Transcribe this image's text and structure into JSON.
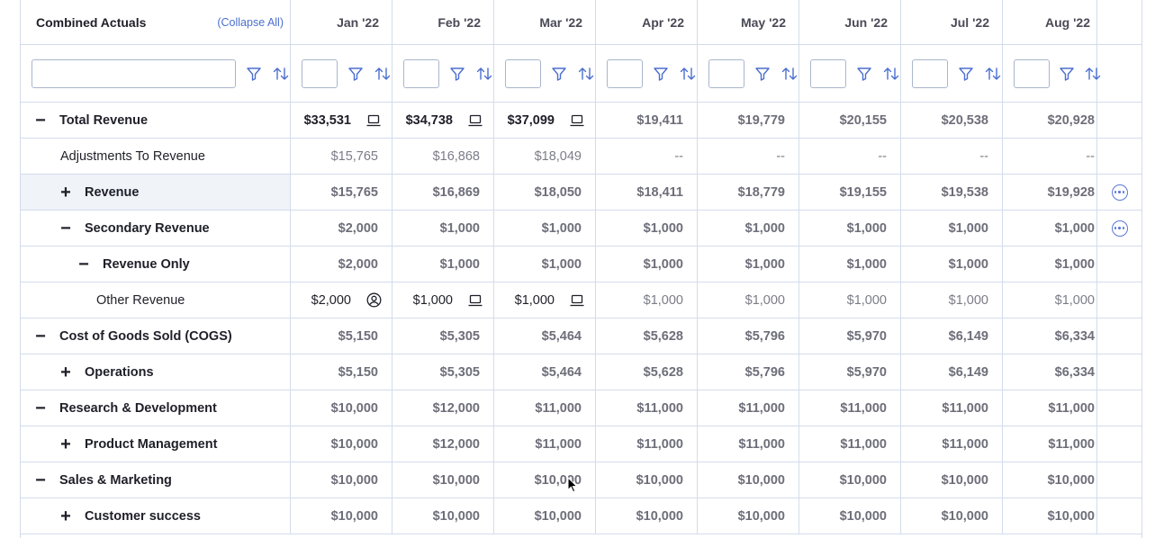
{
  "header": {
    "title": "Combined Actuals",
    "collapse_all": "(Collapse All)",
    "months": [
      "Jan '22",
      "Feb '22",
      "Mar '22",
      "Apr '22",
      "May '22",
      "Jun '22",
      "Jul '22",
      "Aug '22"
    ]
  },
  "filter": {
    "label_value": "",
    "month_values": [
      "",
      "",
      "",
      "",
      "",
      "",
      "",
      ""
    ]
  },
  "rows": [
    {
      "label": "Total Revenue",
      "toggle": "−",
      "values": [
        "$33,531",
        "$34,738",
        "$37,099",
        "$19,411",
        "$19,779",
        "$20,155",
        "$20,538",
        "$20,928"
      ],
      "icons": [
        "laptop-icon",
        "laptop-icon",
        "laptop-icon"
      ]
    },
    {
      "label": "Adjustments To Revenue",
      "toggle": "",
      "values": [
        "$15,765",
        "$16,868",
        "$18,049",
        "--",
        "--",
        "--",
        "--",
        "--"
      ]
    },
    {
      "label": "Revenue",
      "toggle": "+",
      "values": [
        "$15,765",
        "$16,869",
        "$18,050",
        "$18,411",
        "$18,779",
        "$19,155",
        "$19,538",
        "$19,928"
      ],
      "action": "more-options-icon"
    },
    {
      "label": "Secondary Revenue",
      "toggle": "−",
      "values": [
        "$2,000",
        "$1,000",
        "$1,000",
        "$1,000",
        "$1,000",
        "$1,000",
        "$1,000",
        "$1,000"
      ],
      "action": "more-options-icon"
    },
    {
      "label": "Revenue Only",
      "toggle": "−",
      "values": [
        "$2,000",
        "$1,000",
        "$1,000",
        "$1,000",
        "$1,000",
        "$1,000",
        "$1,000",
        "$1,000"
      ]
    },
    {
      "label": "Other Revenue",
      "toggle": "",
      "values": [
        "$2,000",
        "$1,000",
        "$1,000",
        "$1,000",
        "$1,000",
        "$1,000",
        "$1,000",
        "$1,000"
      ],
      "icons": [
        "user-circle-icon",
        "laptop-icon",
        "laptop-icon"
      ]
    },
    {
      "label": "Cost of Goods Sold (COGS)",
      "toggle": "−",
      "values": [
        "$5,150",
        "$5,305",
        "$5,464",
        "$5,628",
        "$5,796",
        "$5,970",
        "$6,149",
        "$6,334"
      ]
    },
    {
      "label": "Operations",
      "toggle": "+",
      "values": [
        "$5,150",
        "$5,305",
        "$5,464",
        "$5,628",
        "$5,796",
        "$5,970",
        "$6,149",
        "$6,334"
      ]
    },
    {
      "label": "Research & Development",
      "toggle": "−",
      "values": [
        "$10,000",
        "$12,000",
        "$11,000",
        "$11,000",
        "$11,000",
        "$11,000",
        "$11,000",
        "$11,000"
      ]
    },
    {
      "label": "Product Management",
      "toggle": "+",
      "values": [
        "$10,000",
        "$12,000",
        "$11,000",
        "$11,000",
        "$11,000",
        "$11,000",
        "$11,000",
        "$11,000"
      ]
    },
    {
      "label": "Sales & Marketing",
      "toggle": "−",
      "values": [
        "$10,000",
        "$10,000",
        "$10,000",
        "$10,000",
        "$10,000",
        "$10,000",
        "$10,000",
        "$10,000"
      ]
    },
    {
      "label": "Customer success",
      "toggle": "+",
      "values": [
        "$10,000",
        "$10,000",
        "$10,000",
        "$10,000",
        "$10,000",
        "$10,000",
        "$10,000",
        "$10,000"
      ]
    }
  ],
  "colors": {
    "border": "#d3dceb",
    "accent": "#4b6fcf",
    "text": "#1f1f29",
    "muted": "#6e6e7a",
    "row_highlight": "#f0f3f8"
  }
}
